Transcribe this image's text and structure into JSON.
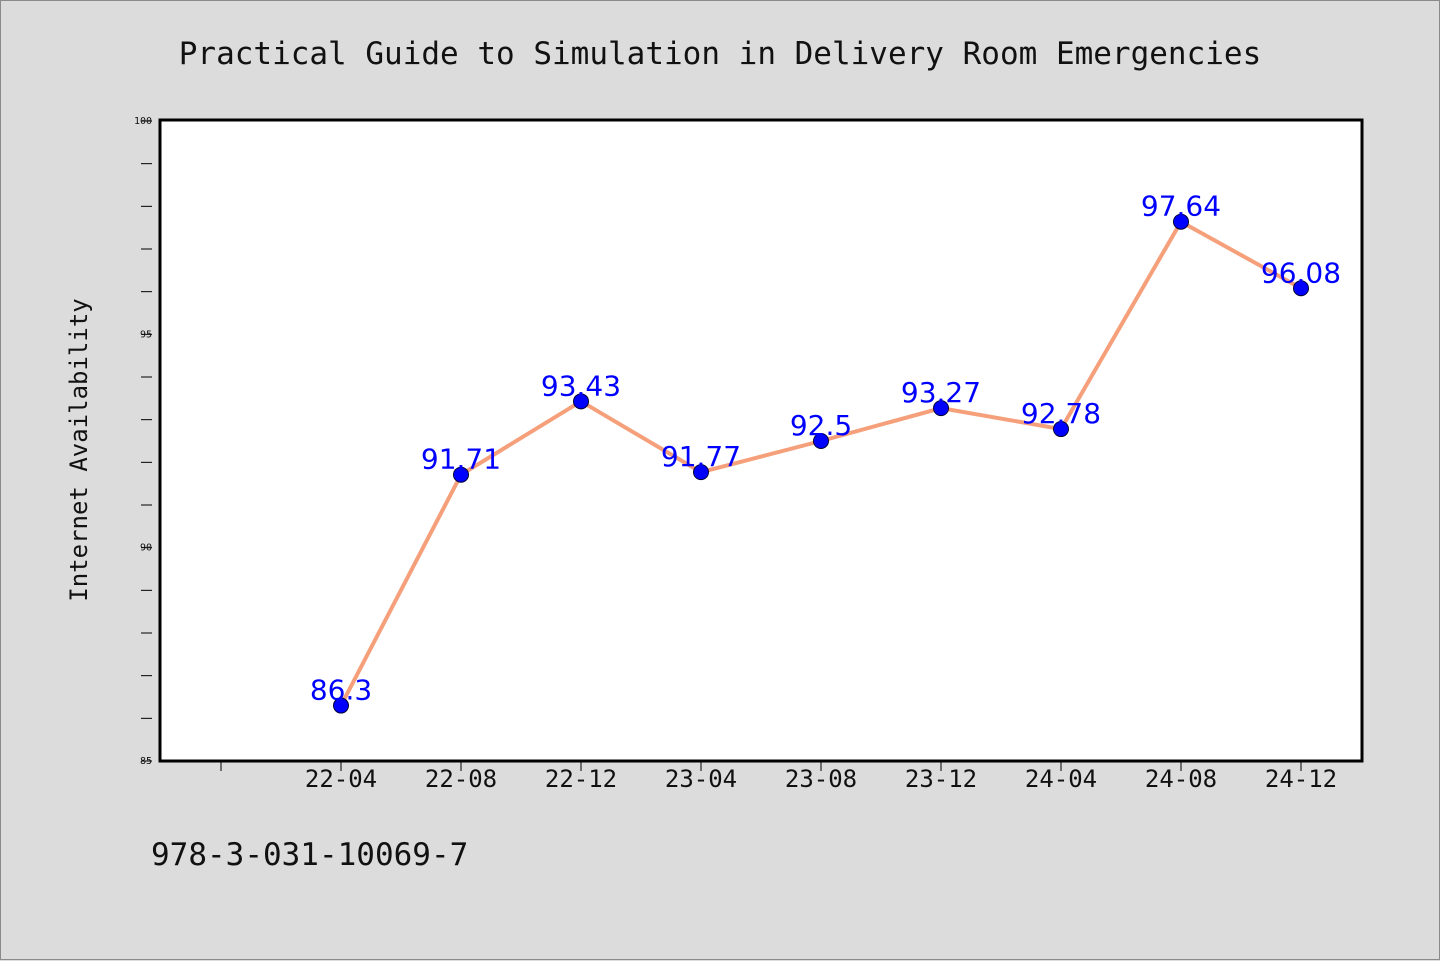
{
  "chart_data": {
    "type": "line",
    "title": "Practical Guide to Simulation in Delivery Room Emergencies",
    "ylabel": "Internet Availability",
    "xlabel": "",
    "categories": [
      "22-04",
      "22-08",
      "22-12",
      "23-04",
      "23-08",
      "23-12",
      "24-04",
      "24-08",
      "24-12"
    ],
    "series": [
      {
        "values": [
          86.3,
          91.71,
          93.43,
          91.77,
          92.5,
          93.27,
          92.78,
          97.64,
          96.08
        ]
      }
    ],
    "ylim": [
      85,
      100
    ],
    "yticks": [
      "85",
      "90",
      "95",
      "100"
    ],
    "grid": false,
    "legend": "none",
    "line_color": "#f5a07a",
    "marker_color": "#0000ff",
    "label_color": "#0000ff"
  },
  "footer": {
    "isbn": "978-3-031-10069-7"
  }
}
